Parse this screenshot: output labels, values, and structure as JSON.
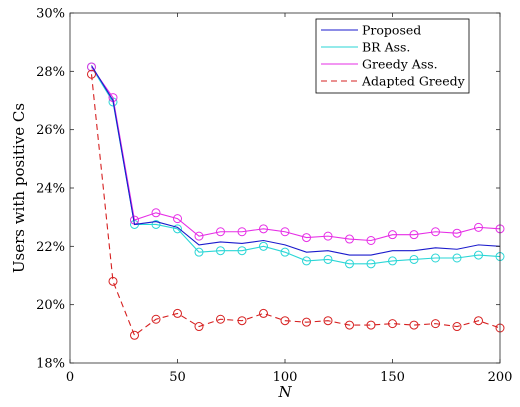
{
  "chart_data": {
    "type": "line",
    "xlabel": "N",
    "ylabel": "Users with positive Cs",
    "xlim": [
      0,
      200
    ],
    "ylim": [
      18,
      30
    ],
    "x_ticks": [
      "0",
      "50",
      "100",
      "150",
      "200"
    ],
    "y_ticks": [
      "18%",
      "20%",
      "22%",
      "24%",
      "26%",
      "28%",
      "30%"
    ],
    "x_tick_values": [
      0,
      50,
      100,
      150,
      200
    ],
    "y_tick_values": [
      18,
      20,
      22,
      24,
      26,
      28,
      30
    ],
    "grid": false,
    "legend_position": "top-right",
    "x": [
      10,
      20,
      30,
      40,
      50,
      60,
      70,
      80,
      90,
      100,
      110,
      120,
      130,
      140,
      150,
      160,
      170,
      180,
      190,
      200
    ],
    "series": [
      {
        "name": "Proposed",
        "color": "#1a1acc",
        "style": "solid",
        "marker": "none",
        "values": [
          28.2,
          27.0,
          22.75,
          22.85,
          22.65,
          22.05,
          22.15,
          22.1,
          22.2,
          22.05,
          21.8,
          21.85,
          21.7,
          21.7,
          21.85,
          21.85,
          21.95,
          21.9,
          22.05,
          22.0
        ]
      },
      {
        "name": "BR Ass.",
        "color": "#2ad6d6",
        "style": "solid",
        "marker": "circle",
        "values": [
          28.15,
          26.95,
          22.75,
          22.75,
          22.6,
          21.8,
          21.85,
          21.85,
          22.0,
          21.8,
          21.5,
          21.55,
          21.4,
          21.4,
          21.5,
          21.55,
          21.6,
          21.6,
          21.7,
          21.65
        ]
      },
      {
        "name": "Greedy Ass.",
        "color": "#e62ee6",
        "style": "solid",
        "marker": "circle",
        "values": [
          28.15,
          27.1,
          22.9,
          23.15,
          22.95,
          22.35,
          22.5,
          22.5,
          22.6,
          22.5,
          22.3,
          22.35,
          22.25,
          22.2,
          22.4,
          22.4,
          22.5,
          22.45,
          22.65,
          22.6
        ]
      },
      {
        "name": "Adapted Greedy",
        "color": "#d62020",
        "style": "dashed",
        "marker": "circle",
        "values": [
          27.9,
          20.8,
          18.95,
          19.5,
          19.7,
          19.25,
          19.5,
          19.45,
          19.7,
          19.45,
          19.4,
          19.45,
          19.3,
          19.3,
          19.35,
          19.3,
          19.35,
          19.25,
          19.45,
          19.2
        ]
      }
    ]
  }
}
